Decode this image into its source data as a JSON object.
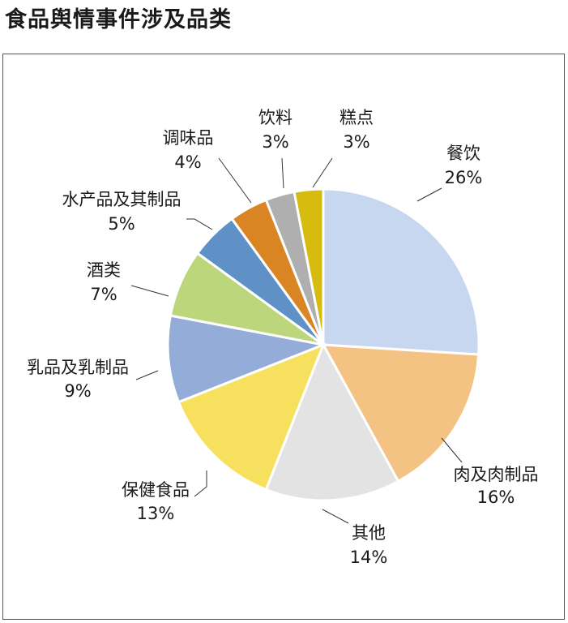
{
  "title": "食品舆情事件涉及品类",
  "chart_data": {
    "type": "pie",
    "title": "食品舆情事件涉及品类",
    "slices": [
      {
        "label": "餐饮",
        "percent_label": "26%",
        "value": 26,
        "color": "#c6d7ef"
      },
      {
        "label": "肉及肉制品",
        "percent_label": "16%",
        "value": 16,
        "color": "#f4c384"
      },
      {
        "label": "其他",
        "percent_label": "14%",
        "value": 14,
        "color": "#e3e3e3"
      },
      {
        "label": "保健食品",
        "percent_label": "13%",
        "value": 13,
        "color": "#f7e05e"
      },
      {
        "label": "乳品及乳制品",
        "percent_label": "9%",
        "value": 9,
        "color": "#93add8"
      },
      {
        "label": "酒类",
        "percent_label": "7%",
        "value": 7,
        "color": "#bcd67b"
      },
      {
        "label": "水产品及其制品",
        "percent_label": "5%",
        "value": 5,
        "color": "#5f91c7"
      },
      {
        "label": "调味品",
        "percent_label": "4%",
        "value": 4,
        "color": "#d98524"
      },
      {
        "label": "饮料",
        "percent_label": "3%",
        "value": 3,
        "color": "#afafaf"
      },
      {
        "label": "糕点",
        "percent_label": "3%",
        "value": 3,
        "color": "#d6bc0f"
      }
    ]
  }
}
